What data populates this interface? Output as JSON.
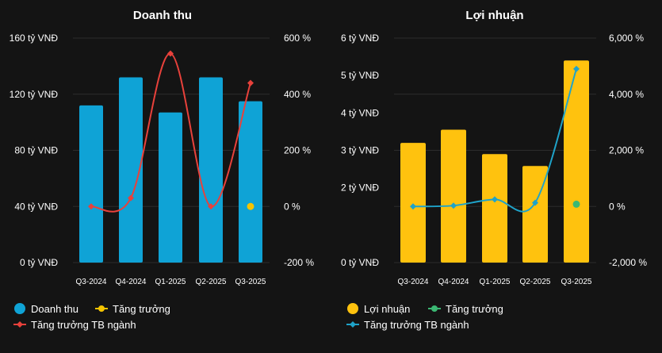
{
  "charts": [
    {
      "type": "bar+line",
      "title": "Doanh thu",
      "categories": [
        "Q3-2024",
        "Q4-2024",
        "Q1-2025",
        "Q2-2025",
        "Q3-2025"
      ],
      "bar_series": {
        "name": "Doanh thu",
        "color": "#0fa3d6",
        "values": [
          112,
          132,
          107,
          132,
          115
        ]
      },
      "growth_series": {
        "name": "Tăng trưởng",
        "color": "#f5c400",
        "points": [
          {
            "index": 4,
            "value": 0
          }
        ]
      },
      "industry_series": {
        "name": "Tăng trưởng TB ngành",
        "color": "#e8413b",
        "values": [
          0,
          30,
          545,
          0,
          440
        ]
      },
      "y_left": {
        "min": 0,
        "max": 160,
        "ticks": [
          0,
          40,
          80,
          120,
          160
        ],
        "tick_labels": [
          "0 tỷ VNĐ",
          "40 tỷ VNĐ",
          "80 tỷ VNĐ",
          "120 tỷ VNĐ",
          "160 tỷ VNĐ"
        ]
      },
      "y_right": {
        "min": -200,
        "max": 600,
        "ticks": [
          -200,
          0,
          200,
          400,
          600
        ],
        "tick_labels": [
          "-200 %",
          "0 %",
          "200 %",
          "400 %",
          "600 %"
        ]
      },
      "legend": [
        {
          "label": "Doanh thu",
          "marker": "circle",
          "color": "#0fa3d6"
        },
        {
          "label": "Tăng trưởng",
          "marker": "line-dot",
          "color": "#f5c400"
        },
        {
          "label": "Tăng trưởng TB ngành",
          "marker": "line-diamond",
          "color": "#e8413b"
        }
      ]
    },
    {
      "type": "bar+line",
      "title": "Lợi nhuận",
      "categories": [
        "Q3-2024",
        "Q4-2024",
        "Q1-2025",
        "Q2-2025",
        "Q3-2025"
      ],
      "bar_series": {
        "name": "Lợi nhuận",
        "color": "#ffc20e",
        "values": [
          3.2,
          3.55,
          2.9,
          2.58,
          5.4
        ]
      },
      "growth_series": {
        "name": "Tăng trưởng",
        "color": "#3bb873",
        "points": [
          {
            "index": 4,
            "value": 80
          }
        ]
      },
      "industry_series": {
        "name": "Tăng trưởng TB ngành",
        "color": "#1fa3c9",
        "values": [
          0,
          30,
          250,
          130,
          4900
        ]
      },
      "y_left": {
        "min": 0,
        "max": 6,
        "ticks": [
          0,
          2,
          3,
          4,
          5,
          6
        ],
        "tick_labels": [
          "0 tỷ VNĐ",
          "2 tỷ VNĐ",
          "3 tỷ VNĐ",
          "4 tỷ VNĐ",
          "5 tỷ VNĐ",
          "6 tỷ VNĐ"
        ]
      },
      "y_right": {
        "min": -2000,
        "max": 6000,
        "ticks": [
          -2000,
          0,
          2000,
          4000,
          6000
        ],
        "tick_labels": [
          "-2,000 %",
          "0 %",
          "2,000 %",
          "4,000 %",
          "6,000 %"
        ]
      },
      "legend": [
        {
          "label": "Lợi nhuận",
          "marker": "circle",
          "color": "#ffc20e"
        },
        {
          "label": "Tăng trưởng",
          "marker": "line-dot",
          "color": "#3bb873"
        },
        {
          "label": "Tăng trưởng TB ngành",
          "marker": "line-diamond",
          "color": "#1fa3c9"
        }
      ]
    }
  ]
}
